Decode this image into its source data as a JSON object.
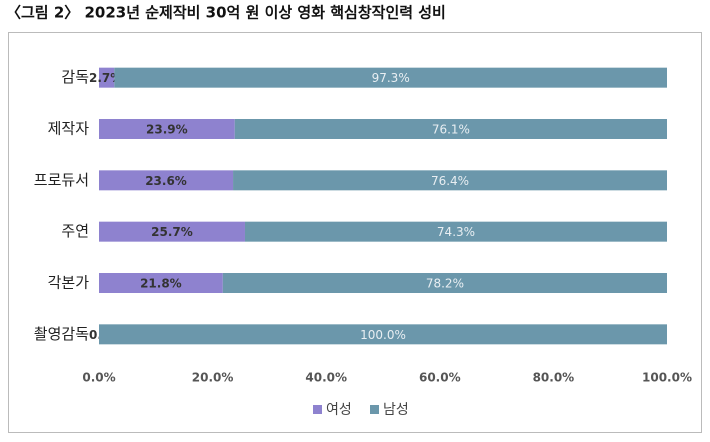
{
  "chart_data": {
    "type": "stacked-bar-horizontal",
    "title": "〈그림 2〉 2023년 순제작비 30억 원 이상 영화 핵심창작인력 성비",
    "categories": [
      "감독",
      "제작자",
      "프로듀서",
      "주연",
      "각본가",
      "촬영감독"
    ],
    "series": [
      {
        "name": "여성",
        "color": "#8e82cf",
        "values": [
          2.7,
          23.9,
          23.6,
          25.7,
          21.8,
          0.0
        ],
        "value_labels": [
          "2.7%",
          "23.9%",
          "23.6%",
          "25.7%",
          "21.8%",
          "0.0%"
        ]
      },
      {
        "name": "남성",
        "color": "#6b97ab",
        "values": [
          97.3,
          76.1,
          76.4,
          74.3,
          78.2,
          100.0
        ],
        "value_labels": [
          "97.3%",
          "76.1%",
          "76.4%",
          "74.3%",
          "78.2%",
          "100.0%"
        ]
      }
    ],
    "xlim": [
      0,
      100
    ],
    "xticks": [
      {
        "value": 0,
        "label": "0.0%"
      },
      {
        "value": 20,
        "label": "20.0%"
      },
      {
        "value": 40,
        "label": "40.0%"
      },
      {
        "value": 60,
        "label": "60.0%"
      },
      {
        "value": 80,
        "label": "80.0%"
      },
      {
        "value": 100,
        "label": "100.0%"
      }
    ],
    "legend": "bottom"
  }
}
